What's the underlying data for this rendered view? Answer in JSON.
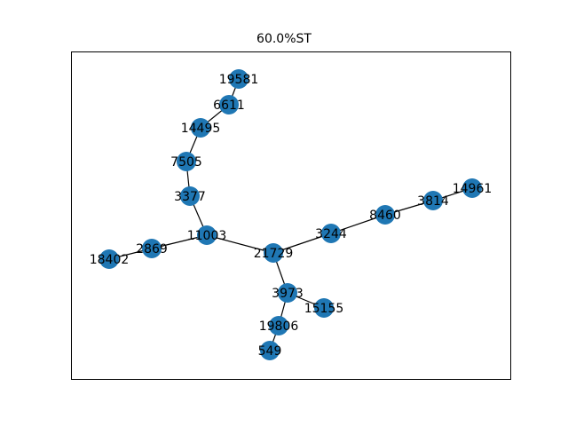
{
  "title": "60.0%ST",
  "colors": {
    "node": "#1f77b4",
    "edge": "#000000",
    "frame": "#000000",
    "background": "#ffffff"
  },
  "nodes": [
    {
      "id": "19581",
      "label": "19581"
    },
    {
      "id": "6611",
      "label": "6611"
    },
    {
      "id": "14495",
      "label": "14495"
    },
    {
      "id": "7505",
      "label": "7505"
    },
    {
      "id": "3377",
      "label": "3377"
    },
    {
      "id": "11003",
      "label": "11003"
    },
    {
      "id": "2869",
      "label": "2869"
    },
    {
      "id": "18402",
      "label": "18402"
    },
    {
      "id": "21729",
      "label": "21729"
    },
    {
      "id": "3244",
      "label": "3244"
    },
    {
      "id": "8460",
      "label": "8460"
    },
    {
      "id": "3814",
      "label": "3814"
    },
    {
      "id": "14961",
      "label": "14961"
    },
    {
      "id": "3973",
      "label": "3973"
    },
    {
      "id": "15155",
      "label": "15155"
    },
    {
      "id": "19806",
      "label": "19806"
    },
    {
      "id": "549",
      "label": "549"
    }
  ],
  "edges": [
    [
      "19581",
      "6611"
    ],
    [
      "6611",
      "14495"
    ],
    [
      "14495",
      "7505"
    ],
    [
      "7505",
      "3377"
    ],
    [
      "3377",
      "11003"
    ],
    [
      "11003",
      "2869"
    ],
    [
      "2869",
      "18402"
    ],
    [
      "11003",
      "21729"
    ],
    [
      "21729",
      "3244"
    ],
    [
      "3244",
      "8460"
    ],
    [
      "8460",
      "3814"
    ],
    [
      "3814",
      "14961"
    ],
    [
      "21729",
      "3973"
    ],
    [
      "3973",
      "15155"
    ],
    [
      "3973",
      "19806"
    ],
    [
      "19806",
      "549"
    ]
  ]
}
